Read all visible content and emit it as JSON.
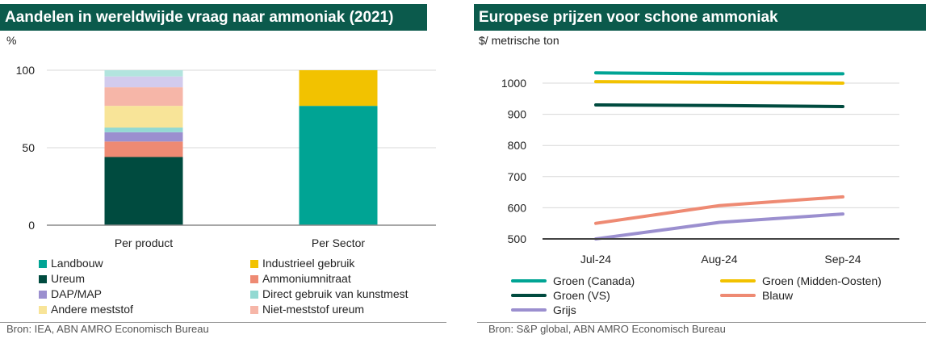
{
  "left": {
    "title": "Aandelen in wereldwijde vraag naar ammoniak (2021)",
    "unit": "%",
    "source": "Bron: IEA, ABN AMRO Economisch Bureau",
    "chart_data": {
      "type": "bar",
      "stacked": true,
      "categories": [
        "Per product",
        "Per Sector"
      ],
      "ylim": [
        0,
        100
      ],
      "yticks": [
        0,
        50,
        100
      ],
      "grid": true,
      "series": [
        {
          "name": "Landbouw",
          "color": "#00a494",
          "values": [
            0,
            77
          ]
        },
        {
          "name": "Industrieel gebruik",
          "color": "#f2c200",
          "values": [
            0,
            23
          ]
        },
        {
          "name": "Ureum",
          "color": "#004b3f",
          "values": [
            44,
            0
          ]
        },
        {
          "name": "Ammoniumnitraat",
          "color": "#ee8a73",
          "values": [
            10,
            0
          ]
        },
        {
          "name": "DAP/MAP",
          "color": "#9b8fcf",
          "values": [
            6,
            0
          ]
        },
        {
          "name": "Direct gebruik van kunstmest",
          "color": "#93d9d2",
          "values": [
            3,
            0
          ]
        },
        {
          "name": "Andere meststof",
          "color": "#f8e498",
          "values": [
            14,
            0
          ]
        },
        {
          "name": "Niet-meststof ureum",
          "color": "#f6b6a8",
          "values": [
            12,
            0
          ]
        },
        {
          "name": "",
          "color": "#d2cbed",
          "values": [
            7,
            0
          ]
        },
        {
          "name": "",
          "color": "#b2e4de",
          "values": [
            4,
            0
          ]
        }
      ]
    }
  },
  "right": {
    "title": "Europese prijzen voor schone ammoniak",
    "unit": "$/ metrische ton",
    "source": "Bron: S&P global, ABN AMRO Economisch Bureau",
    "chart_data": {
      "type": "line",
      "x": [
        "Jul-24",
        "Aug-24",
        "Sep-24"
      ],
      "ylim": [
        500,
        1050
      ],
      "yticks": [
        500,
        600,
        700,
        800,
        900,
        1000
      ],
      "grid": true,
      "series": [
        {
          "name": "Groen (Canada)",
          "color": "#00a494",
          "values": [
            1033,
            1030,
            1030
          ]
        },
        {
          "name": "Groen (Midden-Oosten)",
          "color": "#f2c200",
          "values": [
            1005,
            1003,
            1000
          ]
        },
        {
          "name": "Groen (VS)",
          "color": "#004b3f",
          "values": [
            930,
            928,
            925
          ]
        },
        {
          "name": "Blauw",
          "color": "#ee8a73",
          "values": [
            550,
            607,
            635
          ]
        },
        {
          "name": "Grijs",
          "color": "#9b8fcf",
          "values": [
            500,
            553,
            580
          ]
        }
      ]
    }
  }
}
